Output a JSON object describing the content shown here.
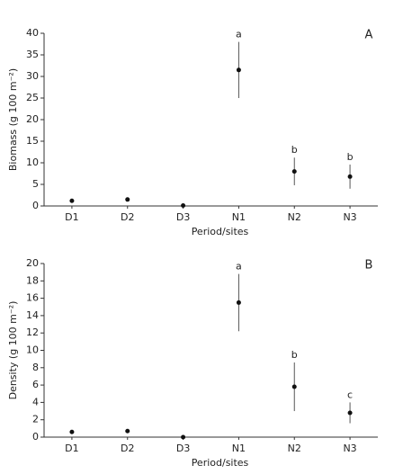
{
  "chart_data": [
    {
      "type": "dot",
      "panel_label": "A",
      "x_label": "Period/sites",
      "y_label": "Biomass (g 100 m⁻²)",
      "categories": [
        "D1",
        "D2",
        "D3",
        "N1",
        "N2",
        "N3"
      ],
      "values": [
        1.2,
        1.5,
        0.1,
        31.5,
        8,
        6.8
      ],
      "errors": [
        null,
        null,
        null,
        6.5,
        3.2,
        2.8
      ],
      "letters": [
        null,
        null,
        null,
        "a",
        "b",
        "b"
      ],
      "color": "#111",
      "ylim": [
        0,
        40
      ],
      "yticks": [
        0,
        5,
        10,
        15,
        20,
        25,
        30,
        35,
        40
      ]
    },
    {
      "type": "dot",
      "panel_label": "B",
      "x_label": "Period/sites",
      "y_label": "Density (g 100 m⁻²)",
      "categories": [
        "D1",
        "D2",
        "D3",
        "N1",
        "N2",
        "N3"
      ],
      "values": [
        0.6,
        0.7,
        0,
        15.5,
        5.8,
        2.8
      ],
      "errors": [
        null,
        null,
        null,
        3.3,
        2.8,
        1.2
      ],
      "letters": [
        null,
        null,
        null,
        "a",
        "b",
        "c"
      ],
      "color": "#111",
      "ylim": [
        0,
        20
      ],
      "yticks": [
        0,
        2,
        4,
        6,
        8,
        10,
        12,
        14,
        16,
        18,
        20
      ]
    }
  ]
}
